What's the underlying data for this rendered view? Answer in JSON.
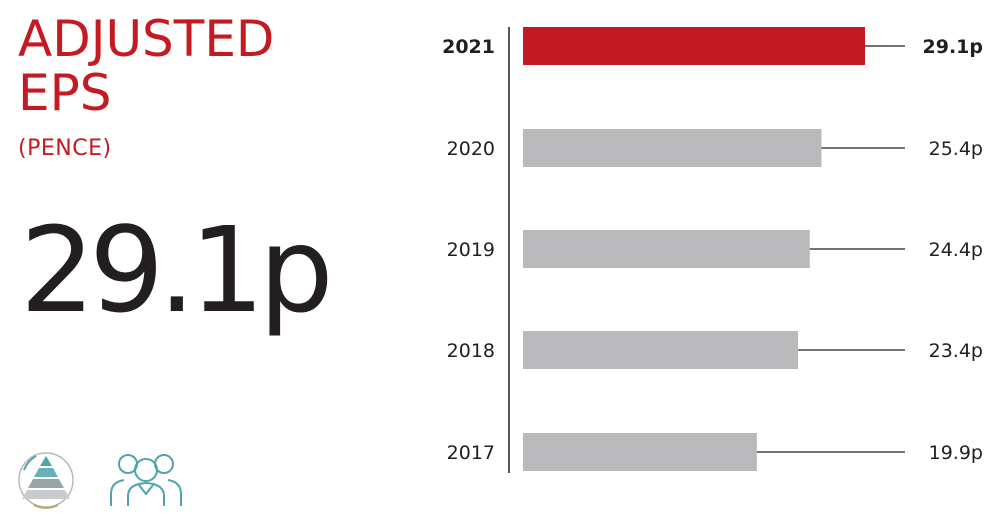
{
  "title_line1": "ADJUSTED",
  "title_line2": "EPS",
  "subtitle": "(PENCE)",
  "headline_value": "29.1p",
  "icons": [
    "pyramid-cycle-icon",
    "people-group-icon"
  ],
  "colors": {
    "accent": "#c41a21",
    "bar": "#b9b9bb",
    "text": "#231f20",
    "icon_teal": "#4fa3ad"
  },
  "chart_data": {
    "type": "bar",
    "orientation": "horizontal",
    "categories": [
      "2021",
      "2020",
      "2019",
      "2018",
      "2017"
    ],
    "values": [
      29.1,
      25.4,
      24.4,
      23.4,
      19.9
    ],
    "labels": [
      "29.1p",
      "25.4p",
      "24.4p",
      "23.4p",
      "19.9p"
    ],
    "highlight": "2021",
    "xlim": [
      0,
      29.1
    ],
    "grid": false
  }
}
